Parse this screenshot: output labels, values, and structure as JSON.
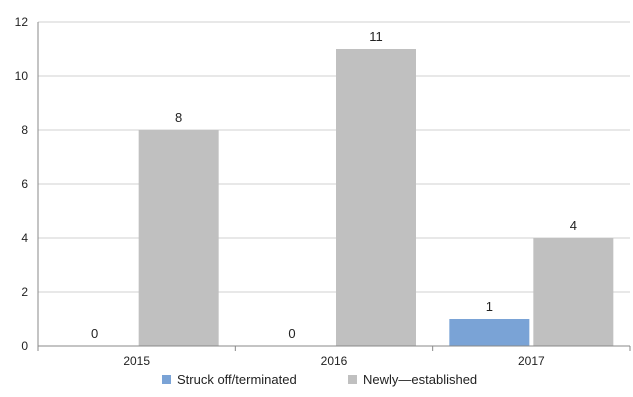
{
  "chart_data": {
    "type": "bar",
    "categories": [
      "2015",
      "2016",
      "2017"
    ],
    "series": [
      {
        "name": "Struck off/terminated",
        "values": [
          0,
          0,
          1
        ],
        "color": "#7aa3d6"
      },
      {
        "name": "Newly—established",
        "values": [
          8,
          11,
          4
        ],
        "color": "#c0c0c0"
      }
    ],
    "ylim": [
      0,
      12
    ],
    "yticks": [
      0,
      2,
      4,
      6,
      8,
      10,
      12
    ],
    "grid": true,
    "legend_position": "bottom"
  }
}
